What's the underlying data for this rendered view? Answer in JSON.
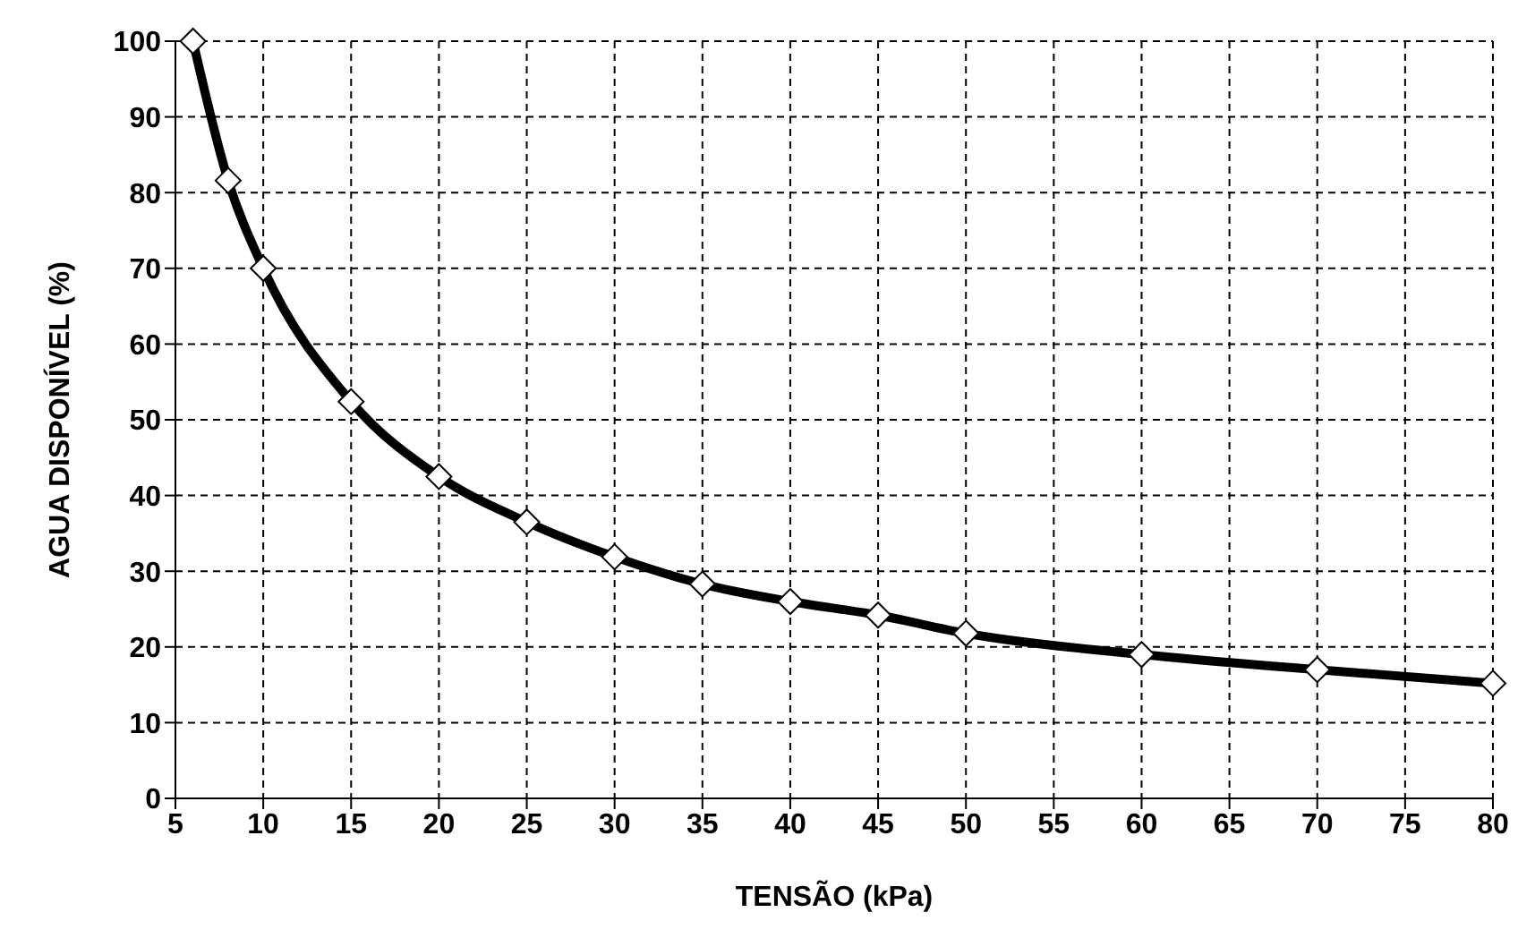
{
  "chart_data": {
    "type": "line",
    "xlabel": "TENSÃO (kPa)",
    "ylabel": "AGUA DISPONÍVEL (%)",
    "x": [
      6,
      8,
      10,
      15,
      20,
      25,
      30,
      35,
      40,
      45,
      50,
      60,
      70,
      80
    ],
    "series": [
      {
        "color": "#000000",
        "values": [
          100,
          81.6,
          70,
          52.4,
          42.5,
          36.5,
          31.9,
          28.3,
          26,
          24.2,
          21.8,
          19,
          17,
          15.2
        ]
      }
    ],
    "xlim": [
      5,
      80
    ],
    "xticks": [
      5,
      10,
      15,
      20,
      25,
      30,
      35,
      40,
      45,
      50,
      55,
      60,
      65,
      70,
      75,
      80
    ],
    "ylim": [
      0,
      100
    ],
    "yticks": [
      0,
      10,
      20,
      30,
      40,
      50,
      60,
      70,
      80,
      90,
      100
    ],
    "grid": true,
    "marker": "diamond",
    "line_style": "solid",
    "legend": false
  }
}
